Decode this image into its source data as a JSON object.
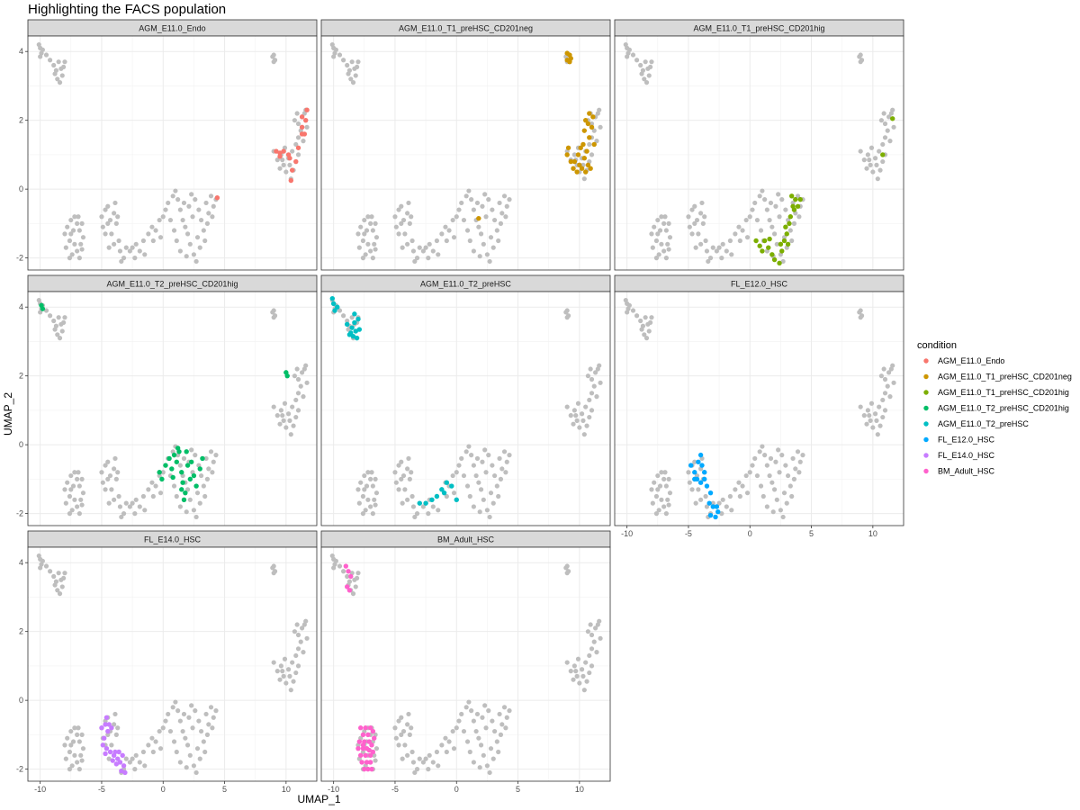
{
  "chart_data": {
    "type": "scatter",
    "title": "Highlighting the FACS population",
    "xlabel": "UMAP_1",
    "ylabel": "UMAP_2",
    "xlim": [
      -11,
      12.5
    ],
    "ylim": [
      -2.35,
      4.45
    ],
    "x_ticks": [
      -10,
      -5,
      0,
      5,
      10
    ],
    "y_ticks": [
      -2,
      0,
      2,
      4
    ],
    "grid": true,
    "legend_position": "right",
    "legend_title": "condition",
    "background_color": "#bebebe",
    "series": [
      {
        "name": "AGM_E11.0_Endo",
        "color": "#F8766D",
        "points": [
          [
            9.2,
            1.1
          ],
          [
            9.5,
            1.05
          ],
          [
            9.8,
            1.1
          ],
          [
            9.5,
            0.95
          ],
          [
            10.2,
            1.0
          ],
          [
            10.3,
            0.9
          ],
          [
            10.8,
            0.8
          ],
          [
            11.0,
            1.2
          ],
          [
            11.3,
            1.6
          ],
          [
            11.5,
            1.6
          ],
          [
            11.3,
            1.8
          ],
          [
            11.6,
            2.0
          ],
          [
            11.3,
            2.1
          ],
          [
            11.7,
            2.3
          ],
          [
            10.5,
            0.55
          ],
          [
            10.4,
            0.25
          ],
          [
            4.4,
            -0.25
          ]
        ]
      },
      {
        "name": "AGM_E11.0_T1_preHSC_CD201neg",
        "color": "#CD9600",
        "points": [
          [
            9.2,
            3.9
          ],
          [
            9.0,
            3.75
          ],
          [
            9.3,
            3.8
          ],
          [
            9.0,
            3.95
          ],
          [
            9.2,
            3.7
          ],
          [
            9.0,
            1.0
          ],
          [
            9.1,
            1.2
          ],
          [
            9.3,
            0.8
          ],
          [
            9.5,
            0.6
          ],
          [
            9.6,
            0.8
          ],
          [
            9.8,
            0.5
          ],
          [
            10.0,
            0.7
          ],
          [
            10.2,
            0.6
          ],
          [
            10.5,
            0.5
          ],
          [
            10.7,
            0.7
          ],
          [
            10.9,
            0.6
          ],
          [
            10.4,
            0.9
          ],
          [
            10.6,
            1.1
          ],
          [
            10.3,
            1.3
          ],
          [
            10.8,
            1.5
          ],
          [
            10.4,
            1.7
          ],
          [
            11.2,
            1.3
          ],
          [
            11.0,
            1.8
          ],
          [
            10.5,
            2.0
          ],
          [
            10.8,
            2.2
          ],
          [
            11.1,
            2.1
          ],
          [
            10.7,
            1.9
          ],
          [
            9.9,
            1.0
          ],
          [
            10.1,
            1.2
          ],
          [
            1.8,
            -0.85
          ]
        ]
      },
      {
        "name": "AGM_E11.0_T1_preHSC_CD201hig",
        "color": "#7CAE00",
        "points": [
          [
            11.6,
            2.05
          ],
          [
            10.8,
            1.0
          ],
          [
            0.5,
            -1.5
          ],
          [
            1.0,
            -1.8
          ],
          [
            1.2,
            -1.5
          ],
          [
            1.5,
            -1.7
          ],
          [
            1.8,
            -1.9
          ],
          [
            2.0,
            -2.05
          ],
          [
            2.4,
            -2.15
          ],
          [
            2.6,
            -1.8
          ],
          [
            2.8,
            -1.5
          ],
          [
            3.0,
            -1.3
          ],
          [
            3.2,
            -1.0
          ],
          [
            3.3,
            -0.8
          ],
          [
            3.5,
            -0.5
          ],
          [
            3.7,
            -0.3
          ],
          [
            3.9,
            -0.5
          ],
          [
            4.1,
            -0.3
          ],
          [
            3.4,
            -0.2
          ],
          [
            3.6,
            -0.6
          ],
          [
            2.9,
            -1.1
          ],
          [
            3.1,
            -1.6
          ],
          [
            2.5,
            -1.6
          ],
          [
            1.6,
            -1.45
          ],
          [
            0.8,
            -1.65
          ]
        ]
      },
      {
        "name": "AGM_E11.0_T2_preHSC_CD201hig",
        "color": "#00BE67",
        "points": [
          [
            -9.9,
            4.05
          ],
          [
            -9.8,
            3.95
          ],
          [
            10.0,
            2.1
          ],
          [
            10.1,
            2.0
          ],
          [
            -0.3,
            -0.8
          ],
          [
            -0.1,
            -1.0
          ],
          [
            0.2,
            -0.6
          ],
          [
            0.5,
            -0.4
          ],
          [
            0.7,
            -0.7
          ],
          [
            0.9,
            -0.3
          ],
          [
            1.1,
            -0.5
          ],
          [
            1.3,
            -0.2
          ],
          [
            1.5,
            -0.8
          ],
          [
            1.6,
            -1.1
          ],
          [
            1.8,
            -1.4
          ],
          [
            2.0,
            -0.6
          ],
          [
            1.9,
            -0.2
          ],
          [
            2.3,
            -0.5
          ],
          [
            2.5,
            -0.9
          ],
          [
            2.7,
            -1.2
          ],
          [
            3.0,
            -0.7
          ],
          [
            3.2,
            -0.4
          ],
          [
            1.7,
            -1.6
          ],
          [
            1.5,
            -1.3
          ],
          [
            1.2,
            -0.1
          ],
          [
            0.8,
            -0.95
          ],
          [
            2.2,
            -1.0
          ]
        ]
      },
      {
        "name": "AGM_E11.0_T2_preHSC",
        "color": "#00BFC4",
        "points": [
          [
            -10.0,
            4.1
          ],
          [
            -9.9,
            3.9
          ],
          [
            -10.1,
            4.25
          ],
          [
            -9.7,
            4.0
          ],
          [
            -8.3,
            3.8
          ],
          [
            -8.0,
            3.65
          ],
          [
            -8.3,
            3.55
          ],
          [
            -8.9,
            3.5
          ],
          [
            -8.5,
            3.4
          ],
          [
            -8.2,
            3.3
          ],
          [
            -7.9,
            3.35
          ],
          [
            -8.7,
            3.2
          ],
          [
            -8.4,
            3.15
          ],
          [
            -8.1,
            3.1
          ],
          [
            -8.6,
            3.25
          ],
          [
            -3.0,
            -1.7
          ],
          [
            -2.5,
            -1.7
          ],
          [
            -2.0,
            -1.6
          ],
          [
            -1.6,
            -1.5
          ],
          [
            -1.2,
            -1.3
          ],
          [
            -0.8,
            -1.1
          ],
          [
            -0.4,
            -1.2
          ],
          [
            0.0,
            -1.6
          ],
          [
            -1.0,
            -1.4
          ]
        ]
      },
      {
        "name": "FL_E12.0_HSC",
        "color": "#00A9FF",
        "points": [
          [
            -4.8,
            -0.6
          ],
          [
            -4.5,
            -0.8
          ],
          [
            -4.2,
            -0.5
          ],
          [
            -4.0,
            -0.3
          ],
          [
            -3.9,
            -0.6
          ],
          [
            -3.7,
            -0.8
          ],
          [
            -4.3,
            -1.0
          ],
          [
            -4.0,
            -1.1
          ],
          [
            -3.7,
            -1.0
          ],
          [
            -4.5,
            -1.0
          ],
          [
            -3.5,
            -1.2
          ],
          [
            -3.2,
            -1.4
          ],
          [
            -3.3,
            -1.7
          ],
          [
            -3.0,
            -1.8
          ],
          [
            -2.7,
            -1.8
          ],
          [
            -3.2,
            -2.05
          ],
          [
            -2.8,
            -2.1
          ],
          [
            -2.6,
            -1.95
          ]
        ]
      },
      {
        "name": "FL_E14.0_HSC",
        "color": "#C77CFF",
        "points": [
          [
            -5.0,
            -0.8
          ],
          [
            -4.7,
            -0.7
          ],
          [
            -4.6,
            -0.5
          ],
          [
            -4.4,
            -0.7
          ],
          [
            -4.2,
            -0.8
          ],
          [
            -4.5,
            -0.9
          ],
          [
            -4.8,
            -1.1
          ],
          [
            -4.9,
            -1.3
          ],
          [
            -4.6,
            -1.4
          ],
          [
            -4.3,
            -1.5
          ],
          [
            -4.0,
            -1.6
          ],
          [
            -3.7,
            -1.7
          ],
          [
            -3.9,
            -1.5
          ],
          [
            -3.6,
            -1.5
          ],
          [
            -3.3,
            -1.6
          ],
          [
            -3.5,
            -1.8
          ],
          [
            -3.2,
            -1.9
          ],
          [
            -3.4,
            -2.05
          ],
          [
            -3.1,
            -2.1
          ],
          [
            -4.1,
            -1.75
          ],
          [
            -3.8,
            -1.85
          ],
          [
            -4.7,
            -1.55
          ]
        ]
      },
      {
        "name": "BM_Adult_HSC",
        "color": "#FF61CC",
        "points": [
          [
            -9.0,
            3.9
          ],
          [
            -8.8,
            3.75
          ],
          [
            -8.6,
            3.6
          ],
          [
            -8.9,
            3.3
          ],
          [
            -8.7,
            3.2
          ],
          [
            -7.8,
            -0.8
          ],
          [
            -7.4,
            -0.8
          ],
          [
            -7.0,
            -0.8
          ],
          [
            -6.8,
            -0.9
          ],
          [
            -7.6,
            -1.0
          ],
          [
            -7.2,
            -1.0
          ],
          [
            -7.9,
            -1.2
          ],
          [
            -7.5,
            -1.2
          ],
          [
            -7.1,
            -1.2
          ],
          [
            -6.7,
            -1.1
          ],
          [
            -8.0,
            -1.4
          ],
          [
            -7.6,
            -1.4
          ],
          [
            -7.3,
            -1.4
          ],
          [
            -6.9,
            -1.3
          ],
          [
            -7.8,
            -1.6
          ],
          [
            -7.4,
            -1.6
          ],
          [
            -7.0,
            -1.6
          ],
          [
            -6.8,
            -1.5
          ],
          [
            -7.7,
            -1.8
          ],
          [
            -7.3,
            -1.8
          ],
          [
            -7.0,
            -1.8
          ],
          [
            -7.5,
            -2.0
          ],
          [
            -7.2,
            -2.0
          ],
          [
            -6.9,
            -2.0
          ],
          [
            -7.6,
            -1.3
          ],
          [
            -7.1,
            -1.45
          ]
        ]
      }
    ],
    "panels": [
      {
        "label": "AGM_E11.0_Endo",
        "series": 0
      },
      {
        "label": "AGM_E11.0_T1_preHSC_CD201neg",
        "series": 1
      },
      {
        "label": "AGM_E11.0_T1_preHSC_CD201hig",
        "series": 2
      },
      {
        "label": "AGM_E11.0_T2_preHSC_CD201hig",
        "series": 3
      },
      {
        "label": "AGM_E11.0_T2_preHSC",
        "series": 4
      },
      {
        "label": "FL_E12.0_HSC",
        "series": 5
      },
      {
        "label": "FL_E14.0_HSC",
        "series": 6
      },
      {
        "label": "BM_Adult_HSC",
        "series": 7
      }
    ],
    "background_points": [
      [
        -10.0,
        4.1
      ],
      [
        -9.9,
        3.95
      ],
      [
        -10.1,
        4.2
      ],
      [
        -9.8,
        4.05
      ],
      [
        -10.0,
        3.85
      ],
      [
        -9.5,
        3.9
      ],
      [
        -9.2,
        3.75
      ],
      [
        -8.9,
        3.6
      ],
      [
        -8.5,
        3.7
      ],
      [
        -8.3,
        3.5
      ],
      [
        -8.8,
        3.35
      ],
      [
        -8.6,
        3.2
      ],
      [
        -8.2,
        3.3
      ],
      [
        -8.4,
        3.1
      ],
      [
        -8.0,
        3.7
      ],
      [
        -8.7,
        3.45
      ],
      [
        -8.1,
        3.55
      ],
      [
        9.0,
        3.9
      ],
      [
        9.1,
        3.75
      ],
      [
        8.9,
        3.85
      ],
      [
        9.0,
        3.7
      ],
      [
        9.0,
        1.1
      ],
      [
        9.3,
        0.85
      ],
      [
        9.5,
        0.6
      ],
      [
        9.8,
        0.7
      ],
      [
        10.0,
        0.5
      ],
      [
        10.3,
        0.7
      ],
      [
        10.6,
        0.55
      ],
      [
        10.4,
        0.3
      ],
      [
        10.8,
        0.8
      ],
      [
        11.0,
        1.0
      ],
      [
        10.8,
        1.3
      ],
      [
        11.0,
        1.5
      ],
      [
        11.2,
        1.7
      ],
      [
        11.0,
        1.9
      ],
      [
        11.3,
        2.1
      ],
      [
        11.6,
        2.3
      ],
      [
        10.9,
        2.2
      ],
      [
        10.5,
        1.1
      ],
      [
        9.6,
        1.0
      ],
      [
        9.9,
        1.2
      ],
      [
        11.4,
        1.4
      ],
      [
        11.7,
        1.8
      ],
      [
        10.2,
        0.9
      ],
      [
        9.7,
        0.85
      ],
      [
        10.7,
        2.0
      ],
      [
        11.5,
        2.2
      ],
      [
        -7.5,
        -0.9
      ],
      [
        -7.2,
        -0.8
      ],
      [
        -7.8,
        -1.1
      ],
      [
        -7.5,
        -1.3
      ],
      [
        -7.0,
        -1.0
      ],
      [
        -6.8,
        -1.2
      ],
      [
        -7.6,
        -1.5
      ],
      [
        -7.2,
        -1.6
      ],
      [
        -7.9,
        -1.7
      ],
      [
        -7.4,
        -1.9
      ],
      [
        -7.0,
        -1.8
      ],
      [
        -6.7,
        -1.6
      ],
      [
        -6.5,
        -1.4
      ],
      [
        -6.8,
        -2.0
      ],
      [
        -7.6,
        -2.0
      ],
      [
        -6.9,
        -0.8
      ],
      [
        -6.6,
        -1.0
      ],
      [
        -8.0,
        -1.3
      ],
      [
        -7.3,
        -1.2
      ],
      [
        -6.6,
        -1.75
      ],
      [
        -5.0,
        -0.8
      ],
      [
        -4.7,
        -0.6
      ],
      [
        -4.3,
        -0.9
      ],
      [
        -4.0,
        -0.7
      ],
      [
        -4.5,
        -1.0
      ],
      [
        -4.7,
        -1.3
      ],
      [
        -4.9,
        -1.1
      ],
      [
        -4.2,
        -1.3
      ],
      [
        -3.8,
        -1.0
      ],
      [
        -3.6,
        -1.5
      ],
      [
        -4.0,
        -1.6
      ],
      [
        -3.5,
        -1.8
      ],
      [
        -3.2,
        -2.0
      ],
      [
        -3.0,
        -1.7
      ],
      [
        -2.7,
        -1.8
      ],
      [
        -3.4,
        -2.1
      ],
      [
        -4.5,
        -0.5
      ],
      [
        -3.7,
        -0.8
      ],
      [
        -4.4,
        -1.7
      ],
      [
        -3.9,
        -0.4
      ],
      [
        -2.5,
        -1.7
      ],
      [
        -2.2,
        -1.6
      ],
      [
        -1.9,
        -1.8
      ],
      [
        -1.6,
        -1.5
      ],
      [
        -1.2,
        -1.3
      ],
      [
        -0.9,
        -1.1
      ],
      [
        -0.6,
        -1.2
      ],
      [
        -0.3,
        -0.9
      ],
      [
        0.0,
        -0.8
      ],
      [
        0.2,
        -0.6
      ],
      [
        -2.3,
        -2.0
      ],
      [
        -1.5,
        -1.9
      ],
      [
        -0.8,
        -1.5
      ],
      [
        -0.2,
        -1.4
      ],
      [
        0.4,
        -0.4
      ],
      [
        0.8,
        -0.2
      ],
      [
        1.0,
        -0.05
      ],
      [
        1.2,
        -0.3
      ],
      [
        1.4,
        -0.6
      ],
      [
        1.6,
        -0.9
      ],
      [
        1.8,
        -1.1
      ],
      [
        2.0,
        -1.3
      ],
      [
        2.2,
        -1.6
      ],
      [
        2.5,
        -1.9
      ],
      [
        2.7,
        -2.1
      ],
      [
        2.1,
        -0.5
      ],
      [
        2.4,
        -0.8
      ],
      [
        2.6,
        -0.3
      ],
      [
        2.9,
        -0.6
      ],
      [
        3.1,
        -0.9
      ],
      [
        3.3,
        -1.2
      ],
      [
        3.5,
        -0.4
      ],
      [
        3.7,
        -0.7
      ],
      [
        3.9,
        -0.2
      ],
      [
        4.1,
        -0.5
      ],
      [
        4.3,
        -0.3
      ],
      [
        1.1,
        -1.5
      ],
      [
        1.4,
        -1.8
      ],
      [
        0.9,
        -1.2
      ],
      [
        2.8,
        -1.4
      ],
      [
        3.6,
        -1.0
      ],
      [
        2.3,
        -0.15
      ],
      [
        1.7,
        -0.4
      ],
      [
        3.0,
        -1.7
      ],
      [
        1.9,
        -1.95
      ],
      [
        0.6,
        -0.9
      ],
      [
        3.4,
        -1.5
      ],
      [
        4.0,
        -0.8
      ]
    ]
  }
}
